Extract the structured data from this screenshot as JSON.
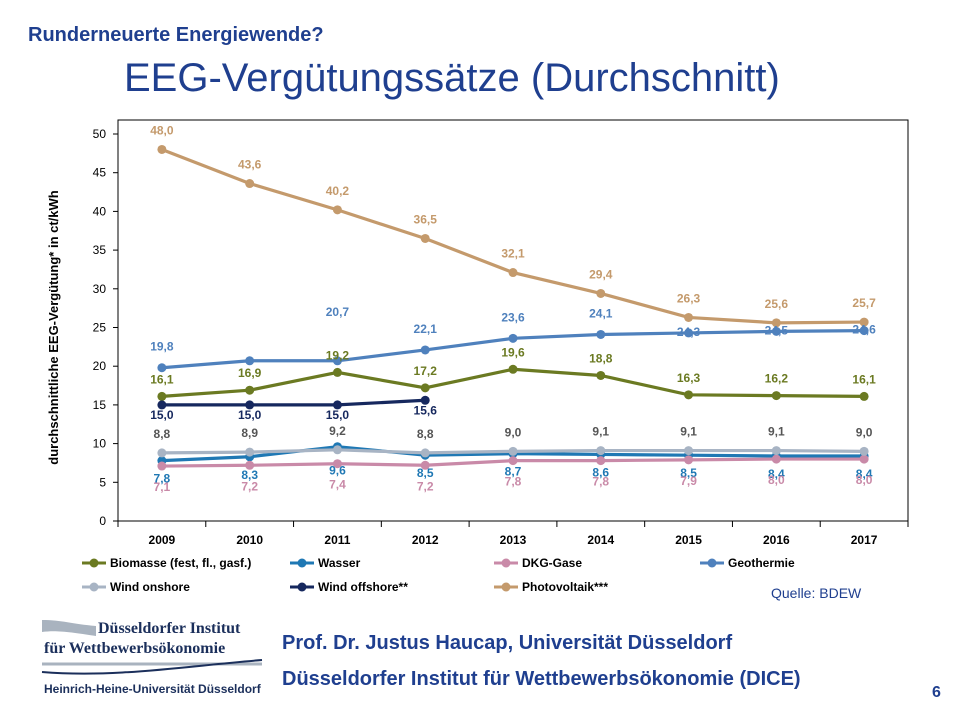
{
  "slide": {
    "kicker": "Runderneuerte Energiewende?",
    "title": "EEG-Vergütungssätze (Durchschnitt)",
    "source": "Quelle: BDEW",
    "logo_line1": "Düsseldorfer Institut",
    "logo_line2": "für Wettbewerbsökonomie",
    "logo_line3": "Heinrich-Heine-Universität Düsseldorf",
    "author": "Prof. Dr. Justus Haucap, Universität Düsseldorf",
    "institute": "Düsseldorfer Institut für Wettbewerbsökonomie (DICE)",
    "slide_number": "6"
  },
  "chart_data": {
    "type": "line",
    "title": "",
    "xlabel": "",
    "ylabel": "durchschnittliche EEG-Vergütung* in ct/kWh",
    "ylim": [
      0,
      50
    ],
    "yticks": [
      0,
      5,
      10,
      15,
      20,
      25,
      30,
      35,
      40,
      45,
      50
    ],
    "categories": [
      "2009",
      "2010",
      "2011",
      "2012",
      "2013",
      "2014",
      "2015",
      "2016",
      "2017"
    ],
    "grid": false,
    "legend_position": "bottom",
    "series": [
      {
        "name": "Biomasse (fest, fl., gasf.)",
        "color": "#6b7a22",
        "values": [
          16.1,
          16.9,
          19.2,
          17.2,
          19.6,
          18.8,
          16.3,
          16.2,
          16.1
        ],
        "labels": [
          "16,1",
          "16,9",
          "19,2",
          "17,2",
          "19,6",
          "18,8",
          "16,3",
          "16,2",
          "16,1"
        ]
      },
      {
        "name": "Wasser",
        "color": "#1f78b4",
        "values": [
          7.8,
          8.3,
          9.6,
          8.5,
          8.7,
          8.6,
          8.5,
          8.4,
          8.4
        ],
        "labels": [
          "7,8",
          "8,3",
          "9,6",
          "8,5",
          "8,7",
          "8,6",
          "8,5",
          "8,4",
          "8,4"
        ]
      },
      {
        "name": "DKG-Gase",
        "color": "#c98aa8",
        "values": [
          7.1,
          7.2,
          7.4,
          7.2,
          7.8,
          7.8,
          7.9,
          8.0,
          8.0
        ],
        "labels": [
          "7,1",
          "7,2",
          "7,4",
          "7,2",
          "7,8",
          "7,8",
          "7,9",
          "8,0",
          "8,0"
        ]
      },
      {
        "name": "Geothermie",
        "color": "#4f81bd",
        "values": [
          19.8,
          20.7,
          20.7,
          22.1,
          23.6,
          24.1,
          24.3,
          24.5,
          24.6
        ],
        "labels": [
          "19,8",
          "",
          "20,7",
          "22,1",
          "23,6",
          "24,1",
          "24,3",
          "24,5",
          "24,6"
        ]
      },
      {
        "name": "Wind onshore",
        "color": "#a8b4c4",
        "values": [
          8.8,
          8.9,
          9.2,
          8.8,
          9.0,
          9.1,
          9.1,
          9.1,
          9.0
        ],
        "labels": [
          "8,8",
          "8,9",
          "9,2",
          "8,8",
          "9,0",
          "9,1",
          "9,1",
          "9,1",
          "9,0"
        ]
      },
      {
        "name": "Wind offshore**",
        "color": "#16285e",
        "values": [
          15.0,
          15.0,
          15.0,
          15.6,
          null,
          null,
          null,
          null,
          null
        ],
        "labels": [
          "15,0",
          "15,0",
          "15,0",
          "15,6",
          "",
          "",
          "",
          "",
          ""
        ]
      },
      {
        "name": "Photovoltaik***",
        "color": "#c49a6c",
        "values": [
          48.0,
          43.6,
          40.2,
          36.5,
          32.1,
          29.4,
          26.3,
          25.6,
          25.7
        ],
        "labels": [
          "48,0",
          "43,6",
          "40,2",
          "36,5",
          "32,1",
          "29,4",
          "26,3",
          "25,6",
          "25,7"
        ]
      }
    ]
  }
}
